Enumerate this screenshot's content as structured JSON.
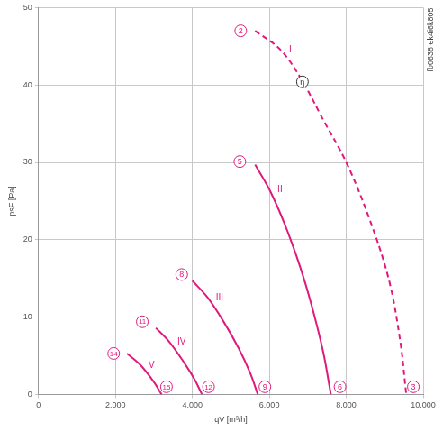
{
  "chart_data": {
    "type": "line",
    "x_label": "qV [m³/h]",
    "y_label": "psF [Pa]",
    "side_text": "fb0638 ek4i6k805",
    "xlim": [
      0,
      10000
    ],
    "xticks": [
      0,
      {
        "value": 2000,
        "label": "2.000"
      },
      {
        "value": 4000,
        "label": "4.000"
      },
      {
        "value": 6000,
        "label": "6.000"
      },
      {
        "value": 8000,
        "label": "8.000"
      },
      {
        "value": 10000,
        "label": "10.000"
      }
    ],
    "ylim": [
      0,
      50
    ],
    "yticks": [
      0,
      10,
      20,
      30,
      40,
      50
    ],
    "grid": true,
    "marker": "none",
    "series": [
      {
        "name": "I",
        "color": "#e0197d",
        "line_style": "dashed",
        "x": [
          5630,
          6300,
          6860,
          7400,
          8000,
          8580,
          9100,
          9400,
          9560
        ],
        "values": [
          47,
          44.5,
          40.5,
          35.5,
          30,
          23,
          15,
          7,
          0
        ]
      },
      {
        "name": "II",
        "color": "#e0197d",
        "line_style": "solid",
        "x": [
          5630,
          6000,
          6400,
          6800,
          7100,
          7400,
          7600
        ],
        "values": [
          29.7,
          26.5,
          22,
          16.5,
          11.5,
          5.5,
          0
        ]
      },
      {
        "name": "III",
        "color": "#e0197d",
        "line_style": "solid",
        "x": [
          4000,
          4400,
          4800,
          5200,
          5500,
          5700
        ],
        "values": [
          14.7,
          12.5,
          9.5,
          6,
          2.8,
          0
        ]
      },
      {
        "name": "IV",
        "color": "#e0197d",
        "line_style": "solid",
        "x": [
          3050,
          3400,
          3800,
          4050,
          4250
        ],
        "values": [
          8.6,
          6.8,
          4,
          2,
          0
        ]
      },
      {
        "name": "V",
        "color": "#e0197d",
        "line_style": "solid",
        "x": [
          2300,
          2650,
          3000,
          3200
        ],
        "values": [
          5.3,
          3.8,
          1.6,
          0
        ]
      }
    ],
    "annotations": [
      {
        "text": "2",
        "x": 5256,
        "y": 47,
        "color": "#e0197d"
      },
      {
        "text": "3",
        "x": 9744,
        "y": 1,
        "color": "#e0197d"
      },
      {
        "text": "5",
        "x": 5233,
        "y": 30.1,
        "color": "#e0197d"
      },
      {
        "text": "6",
        "x": 7837,
        "y": 1,
        "color": "#e0197d"
      },
      {
        "text": "8",
        "x": 3721,
        "y": 15.5,
        "color": "#e0197d"
      },
      {
        "text": "9",
        "x": 5884,
        "y": 1,
        "color": "#e0197d"
      },
      {
        "text": "11",
        "x": 2698,
        "y": 9.4,
        "color": "#e0197d"
      },
      {
        "text": "12",
        "x": 4419,
        "y": 1,
        "color": "#e0197d"
      },
      {
        "text": "14",
        "x": 1953,
        "y": 5.3,
        "color": "#e0197d"
      },
      {
        "text": "15",
        "x": 3326,
        "y": 1,
        "color": "#e0197d"
      },
      {
        "text": "η",
        "x": 6860,
        "y": 40.4,
        "color": "#333333"
      }
    ]
  }
}
